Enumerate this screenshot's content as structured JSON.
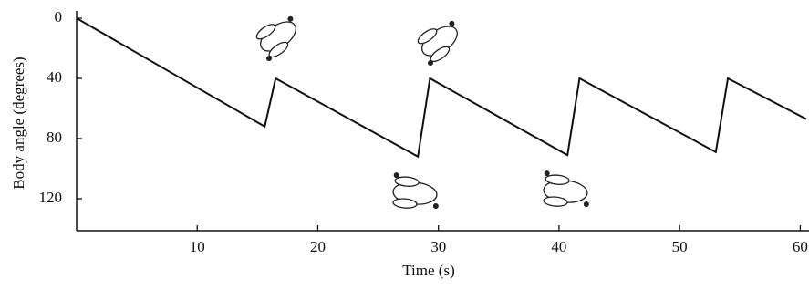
{
  "chart_data": {
    "type": "line",
    "x_label": "Time (s)",
    "y_label": "Body angle (degrees)",
    "series": [
      {
        "color": "#111111",
        "x": [
          0,
          15.6,
          16.5,
          28.3,
          29.3,
          40.7,
          41.7,
          53,
          54,
          60.5
        ],
        "values": [
          0,
          72,
          40,
          92,
          40,
          91,
          40,
          89,
          40,
          67
        ]
      }
    ],
    "xlim": [
      0,
      60.5
    ],
    "xticks": [
      10,
      20,
      30,
      40,
      50,
      60
    ],
    "ylim": [
      0,
      140
    ],
    "yticks": [
      0,
      40,
      80,
      120
    ],
    "y_inverted": true,
    "grid": false
  }
}
